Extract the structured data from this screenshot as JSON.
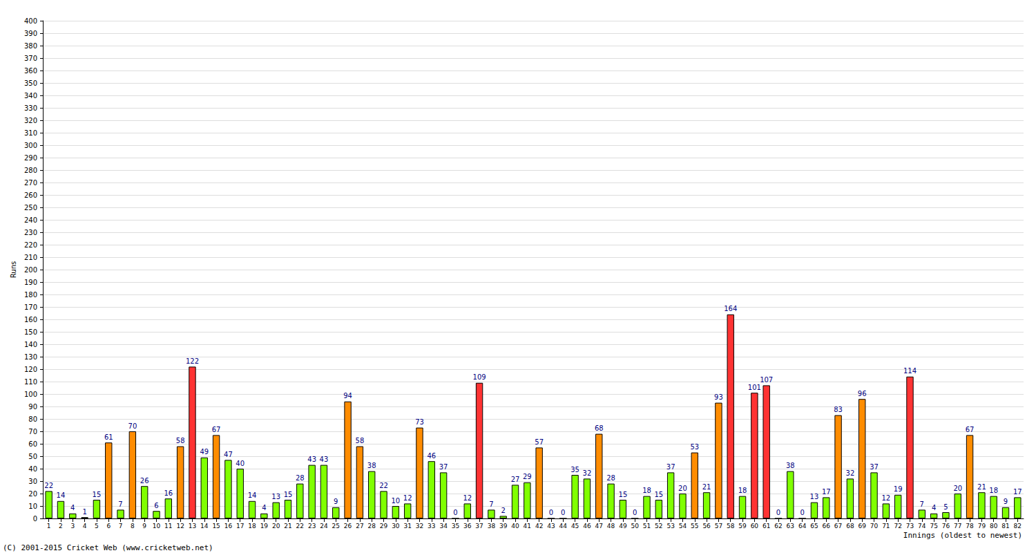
{
  "chart_data": {
    "type": "bar",
    "x_label": "Innings (oldest to newest)",
    "y_label": "Runs",
    "annotations": [
      "(C) 2001-2015 Cricket Web (www.cricketweb.net)"
    ],
    "categories": [
      "1",
      "2",
      "3",
      "4",
      "5",
      "6",
      "7",
      "8",
      "9",
      "10",
      "11",
      "12",
      "13",
      "14",
      "15",
      "16",
      "17",
      "18",
      "19",
      "20",
      "21",
      "22",
      "23",
      "24",
      "25",
      "26",
      "27",
      "28",
      "29",
      "30",
      "31",
      "32",
      "33",
      "34",
      "35",
      "36",
      "37",
      "38",
      "39",
      "40",
      "41",
      "42",
      "43",
      "44",
      "45",
      "46",
      "47",
      "48",
      "49",
      "50",
      "51",
      "52",
      "53",
      "54",
      "55",
      "56",
      "57",
      "58",
      "59",
      "60",
      "61",
      "62",
      "63",
      "64",
      "65",
      "66",
      "67",
      "68",
      "69",
      "70",
      "71",
      "72",
      "73",
      "74",
      "75",
      "76",
      "77",
      "78",
      "79",
      "80",
      "81",
      "82"
    ],
    "values": [
      22,
      14,
      4,
      1,
      15,
      61,
      7,
      70,
      26,
      6,
      16,
      58,
      122,
      49,
      67,
      47,
      40,
      14,
      4,
      13,
      15,
      28,
      43,
      43,
      9,
      94,
      58,
      38,
      22,
      10,
      12,
      73,
      46,
      37,
      0,
      12,
      109,
      7,
      2,
      27,
      29,
      57,
      0,
      0,
      35,
      32,
      68,
      28,
      15,
      0,
      18,
      15,
      37,
      20,
      53,
      21,
      93,
      164,
      18,
      101,
      107,
      0,
      38,
      0,
      13,
      17,
      83,
      32,
      96,
      37,
      12,
      19,
      114,
      7,
      4,
      5,
      20,
      67,
      21,
      18,
      9,
      17
    ],
    "colors": [
      "#80ff00",
      "#80ff00",
      "#80ff00",
      "#80ff00",
      "#80ff00",
      "#ff8c00",
      "#80ff00",
      "#ff8c00",
      "#80ff00",
      "#80ff00",
      "#80ff00",
      "#ff8c00",
      "#ff3333",
      "#80ff00",
      "#ff8c00",
      "#80ff00",
      "#80ff00",
      "#80ff00",
      "#80ff00",
      "#80ff00",
      "#80ff00",
      "#80ff00",
      "#80ff00",
      "#80ff00",
      "#80ff00",
      "#ff8c00",
      "#ff8c00",
      "#80ff00",
      "#80ff00",
      "#80ff00",
      "#80ff00",
      "#ff8c00",
      "#80ff00",
      "#80ff00",
      "#80ff00",
      "#80ff00",
      "#ff3333",
      "#80ff00",
      "#80ff00",
      "#80ff00",
      "#80ff00",
      "#ff8c00",
      "#80ff00",
      "#80ff00",
      "#80ff00",
      "#80ff00",
      "#ff8c00",
      "#80ff00",
      "#80ff00",
      "#80ff00",
      "#80ff00",
      "#80ff00",
      "#80ff00",
      "#80ff00",
      "#ff8c00",
      "#80ff00",
      "#ff8c00",
      "#ff3333",
      "#80ff00",
      "#ff3333",
      "#ff3333",
      "#80ff00",
      "#80ff00",
      "#80ff00",
      "#80ff00",
      "#80ff00",
      "#ff8c00",
      "#80ff00",
      "#ff8c00",
      "#80ff00",
      "#80ff00",
      "#80ff00",
      "#ff3333",
      "#80ff00",
      "#80ff00",
      "#80ff00",
      "#80ff00",
      "#ff8c00",
      "#80ff00",
      "#80ff00",
      "#80ff00",
      "#80ff00"
    ],
    "ylim": [
      0,
      400
    ],
    "yticks": [
      0,
      10,
      20,
      30,
      40,
      50,
      60,
      70,
      80,
      90,
      100,
      110,
      120,
      130,
      140,
      150,
      160,
      170,
      180,
      190,
      200,
      210,
      220,
      230,
      240,
      250,
      260,
      270,
      280,
      290,
      300,
      310,
      320,
      330,
      340,
      350,
      360,
      370,
      380,
      390,
      400
    ],
    "grid": true,
    "data_labels": true
  }
}
